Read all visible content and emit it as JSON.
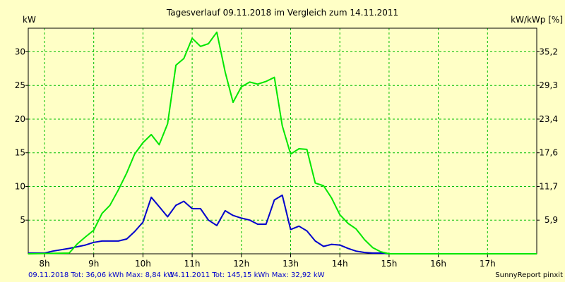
{
  "chart_data": {
    "type": "line",
    "title": "Tagesverlauf 09.11.2018 im Vergleich zum 14.11.2011",
    "ylabel_left": "kW",
    "ylabel_right": "kW/kWp [%]",
    "x_ticks": [
      "8h",
      "9h",
      "10h",
      "11h",
      "12h",
      "13h",
      "14h",
      "15h",
      "16h",
      "17h"
    ],
    "xlim": [
      7.67,
      18.0
    ],
    "ylim": [
      0,
      33.5
    ],
    "y_ticks_left": [
      "5",
      "10",
      "15",
      "20",
      "25",
      "30"
    ],
    "y_ticks_right": [
      "5,9",
      "11,7",
      "17,6",
      "23,4",
      "29,3",
      "35,2"
    ],
    "grid": true,
    "series": [
      {
        "color": "#0000cc",
        "x": [
          7.67,
          8.0,
          8.17,
          8.5,
          8.83,
          9.0,
          9.17,
          9.33,
          9.5,
          9.67,
          9.83,
          10.0,
          10.17,
          10.33,
          10.5,
          10.67,
          10.83,
          11.0,
          11.17,
          11.33,
          11.5,
          11.67,
          11.83,
          12.0,
          12.17,
          12.33,
          12.5,
          12.67,
          12.83,
          13.0,
          13.17,
          13.33,
          13.5,
          13.67,
          13.83,
          14.0,
          14.17,
          14.33,
          14.5,
          14.67,
          14.83,
          15.0,
          15.17,
          15.33,
          15.5,
          15.67,
          15.83,
          16.0,
          16.17,
          16.33,
          16.5,
          16.67,
          16.83,
          17.0,
          17.17,
          17.33,
          17.5,
          17.67,
          18.0
        ],
        "values": [
          0.1,
          0.1,
          0.4,
          0.8,
          1.3,
          1.7,
          1.9,
          1.9,
          1.9,
          2.2,
          3.3,
          4.7,
          8.4,
          7.0,
          5.5,
          7.2,
          7.8,
          6.7,
          6.7,
          5.0,
          4.2,
          6.4,
          5.7,
          5.3,
          5.0,
          4.4,
          4.4,
          8.0,
          8.7,
          3.6,
          4.1,
          3.4,
          1.9,
          1.1,
          1.4,
          1.3,
          0.8,
          0.4,
          0.2,
          0.1,
          0.1,
          0.0,
          0.0,
          0.0,
          0.0,
          0.0,
          0.0,
          0.0,
          0.0,
          0.0,
          0.0,
          0.0,
          0.0,
          0.0,
          0.0,
          0.0,
          0.0,
          0.0,
          0.0
        ]
      },
      {
        "color": "#00e600",
        "x": [
          7.67,
          8.5,
          8.67,
          8.83,
          9.0,
          9.17,
          9.33,
          9.5,
          9.67,
          9.83,
          10.0,
          10.17,
          10.33,
          10.5,
          10.67,
          10.83,
          11.0,
          11.17,
          11.33,
          11.5,
          11.67,
          11.83,
          12.0,
          12.17,
          12.33,
          12.5,
          12.67,
          12.83,
          13.0,
          13.17,
          13.33,
          13.5,
          13.67,
          13.83,
          14.0,
          14.17,
          14.33,
          14.5,
          14.67,
          14.83,
          15.0,
          15.17,
          15.33,
          15.5,
          15.67,
          15.83,
          16.0,
          16.17,
          16.33,
          16.5,
          16.67,
          16.83,
          17.0,
          17.17,
          17.33,
          17.5,
          17.67,
          18.0
        ],
        "values": [
          0.0,
          0.1,
          1.5,
          2.5,
          3.5,
          6.0,
          7.2,
          9.5,
          12.0,
          14.8,
          16.5,
          17.7,
          16.2,
          19.3,
          28.0,
          29.0,
          32.0,
          30.8,
          31.2,
          32.9,
          27.0,
          22.5,
          24.8,
          25.5,
          25.2,
          25.6,
          26.2,
          19.0,
          14.8,
          15.6,
          15.5,
          10.5,
          10.1,
          8.3,
          5.8,
          4.5,
          3.7,
          2.1,
          0.9,
          0.3,
          0.0,
          0.0,
          0.0,
          0.0,
          0.0,
          0.0,
          0.0,
          0.0,
          0.0,
          0.0,
          0.0,
          0.0,
          0.0,
          0.0,
          0.0,
          0.0,
          0.0,
          0.0
        ]
      }
    ]
  },
  "footer": {
    "series1_summary": "09.11.2018 Tot: 36,06 kWh Max: 8,84 kW",
    "series2_summary": "14.11.2011 Tot: 145,15 kWh Max: 32,92 kW",
    "brand": "SunnyReport pinxit"
  },
  "colors": {
    "background": "#ffffc6",
    "grid": "#00bf00",
    "series1": "#0000cc",
    "series2": "#00e600"
  }
}
